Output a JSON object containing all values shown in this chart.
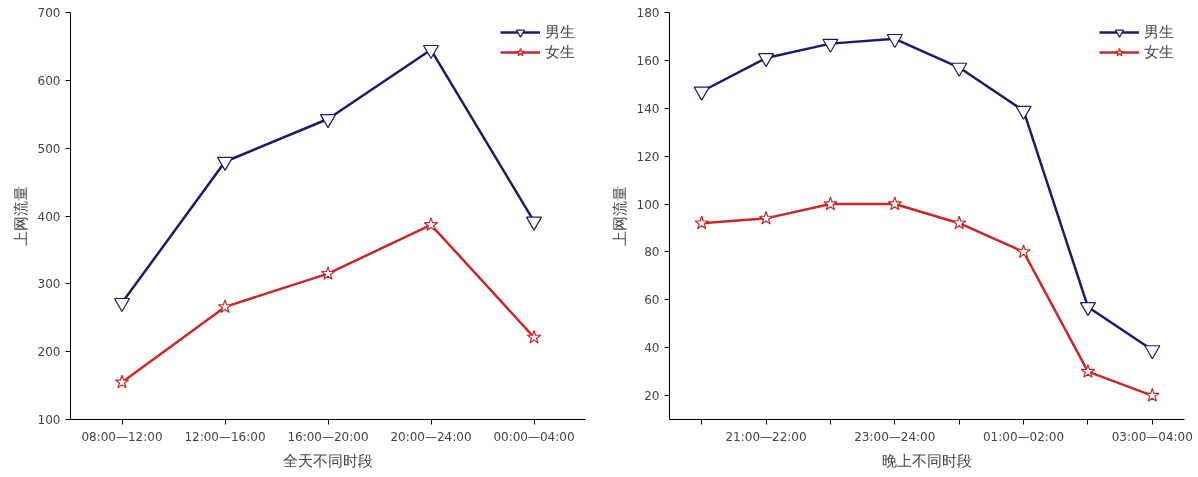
{
  "chart_data": [
    {
      "type": "line",
      "xlabel": "全天不同时段",
      "ylabel": "上网流量",
      "categories": [
        "08:00—12:00",
        "12:00—16:00",
        "16:00—20:00",
        "20:00—24:00",
        "00:00—04:00"
      ],
      "series": [
        {
          "name": "男生",
          "color": "#1a1a6e",
          "marker": "triangle",
          "values": [
            272,
            480,
            543,
            645,
            392
          ]
        },
        {
          "name": "女生",
          "color": "#c8282a",
          "marker": "star",
          "values": [
            155,
            266,
            315,
            387,
            221
          ]
        }
      ],
      "ylim": [
        100,
        700
      ],
      "yticks": [
        100,
        200,
        300,
        400,
        500,
        600,
        700
      ],
      "legend": "top right",
      "grid": false
    },
    {
      "type": "line",
      "xlabel": "晚上不同时段",
      "ylabel": "上网流量",
      "categories": [
        null,
        "21:00—22:00",
        null,
        "23:00—24:00",
        null,
        "01:00—02:00",
        null,
        "03:00—04:00"
      ],
      "series": [
        {
          "name": "男生",
          "color": "#1a1a6e",
          "marker": "triangle",
          "values": [
            147,
            161,
            167,
            169,
            157,
            139,
            57,
            39
          ]
        },
        {
          "name": "女生",
          "color": "#c8282a",
          "marker": "star",
          "values": [
            92,
            94,
            100,
            100,
            92,
            80,
            30,
            20
          ]
        }
      ],
      "ylim": [
        10,
        180
      ],
      "yticks": [
        20,
        40,
        60,
        80,
        100,
        120,
        140,
        160,
        180
      ],
      "legend": "top right",
      "grid": false
    }
  ]
}
